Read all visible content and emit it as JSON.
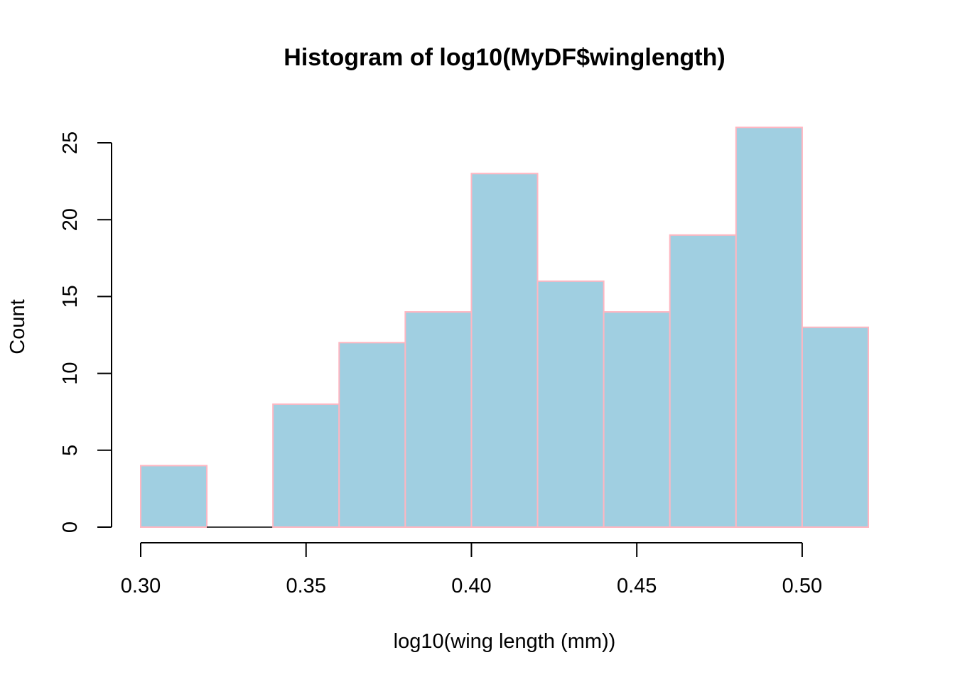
{
  "chart_data": {
    "type": "bar",
    "title": "Histogram of log10(MyDF$winglength)",
    "xlabel": "log10(wing length (mm))",
    "ylabel": "Count",
    "bins": [
      {
        "from": 0.3,
        "to": 0.32,
        "count": 4
      },
      {
        "from": 0.32,
        "to": 0.34,
        "count": 0
      },
      {
        "from": 0.34,
        "to": 0.36,
        "count": 8
      },
      {
        "from": 0.36,
        "to": 0.38,
        "count": 12
      },
      {
        "from": 0.38,
        "to": 0.4,
        "count": 14
      },
      {
        "from": 0.4,
        "to": 0.42,
        "count": 23
      },
      {
        "from": 0.42,
        "to": 0.44,
        "count": 16
      },
      {
        "from": 0.44,
        "to": 0.46,
        "count": 14
      },
      {
        "from": 0.46,
        "to": 0.48,
        "count": 19
      },
      {
        "from": 0.48,
        "to": 0.5,
        "count": 26
      },
      {
        "from": 0.5,
        "to": 0.52,
        "count": 13
      }
    ],
    "xlim": [
      0.3,
      0.52
    ],
    "ylim": [
      0,
      26
    ],
    "x_ticks": [
      "0.30",
      "0.35",
      "0.40",
      "0.45",
      "0.50"
    ],
    "y_ticks": [
      "0",
      "5",
      "10",
      "15",
      "20",
      "25"
    ],
    "grid": false,
    "legend": "none",
    "colors": {
      "fill": "#a0cfe1",
      "border": "#ffb6c1"
    }
  }
}
